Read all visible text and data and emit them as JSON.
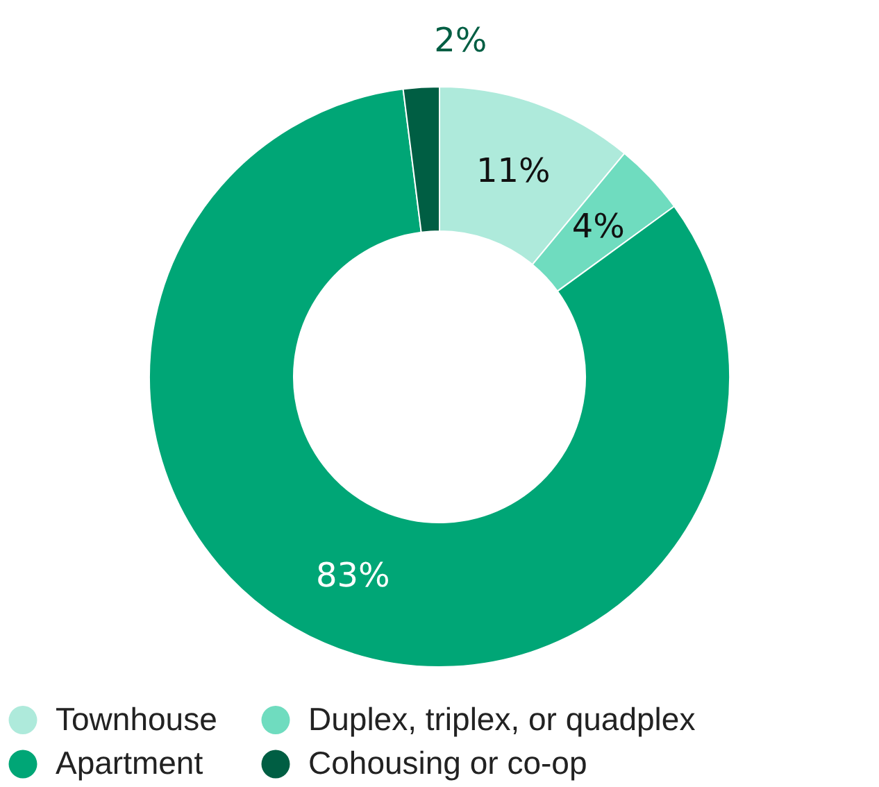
{
  "chart_data": {
    "type": "donut",
    "categories": [
      "Townhouse",
      "Duplex, triplex, or quadplex",
      "Apartment",
      "Cohousing or co-op"
    ],
    "values": [
      11,
      4,
      83,
      2
    ],
    "colors": [
      "#aeeadb",
      "#6fdcbf",
      "#00a676",
      "#005e43"
    ],
    "value_labels": [
      "11%",
      "4%",
      "83%",
      "2%"
    ],
    "legend": "bottom"
  }
}
